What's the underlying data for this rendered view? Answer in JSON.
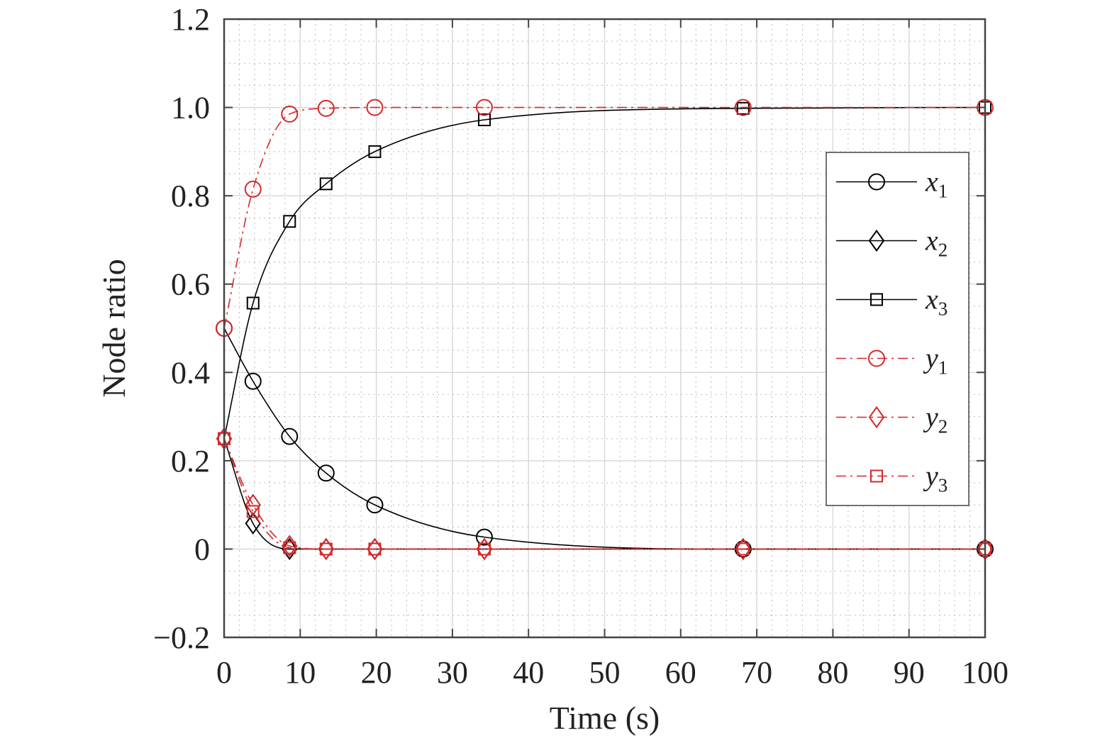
{
  "chart_data": {
    "type": "line",
    "xlabel": "Time (s)",
    "ylabel": "Node ratio",
    "xlim": [
      0,
      100
    ],
    "ylim": [
      -0.2,
      1.2
    ],
    "xticks": [
      0,
      10,
      20,
      30,
      40,
      50,
      60,
      70,
      80,
      90,
      100
    ],
    "yticks": [
      -0.2,
      0,
      0.2,
      0.4,
      0.6,
      0.8,
      1.0,
      1.2
    ],
    "ytick_labels": [
      "−0.2",
      "0",
      "0.2",
      "0.4",
      "0.6",
      "0.8",
      "1.0",
      "1.2"
    ],
    "grid": true,
    "minor_grid": true,
    "legend_position": "right",
    "series": [
      {
        "name": "x",
        "subscript": "1",
        "color": "#000000",
        "dash": "solid",
        "marker": "circle",
        "x": [
          0,
          3.8,
          8.6,
          13.4,
          19.8,
          34.2,
          68.2,
          100
        ],
        "y": [
          0.5,
          0.38,
          0.255,
          0.172,
          0.1,
          0.027,
          0.0,
          0.0
        ]
      },
      {
        "name": "x",
        "subscript": "2",
        "color": "#000000",
        "dash": "solid",
        "marker": "diamond",
        "x": [
          0,
          3.8,
          8.6,
          13.4,
          19.8,
          34.2,
          68.2,
          100
        ],
        "y": [
          0.25,
          0.058,
          0.0,
          0.0,
          0.0,
          0.0,
          0.0,
          0.0
        ]
      },
      {
        "name": "x",
        "subscript": "3",
        "color": "#000000",
        "dash": "solid",
        "marker": "square",
        "x": [
          0,
          3.8,
          8.6,
          13.4,
          19.8,
          34.2,
          68.2,
          100
        ],
        "y": [
          0.25,
          0.557,
          0.742,
          0.827,
          0.9,
          0.972,
          0.998,
          1.0
        ]
      },
      {
        "name": "y",
        "subscript": "1",
        "color": "#d62728",
        "dash": "dashdot",
        "marker": "circle",
        "x": [
          0,
          3.8,
          8.6,
          13.4,
          19.8,
          34.2,
          68.2,
          100
        ],
        "y": [
          0.5,
          0.815,
          0.985,
          0.998,
          1.0,
          1.0,
          1.0,
          1.0
        ]
      },
      {
        "name": "y",
        "subscript": "2",
        "color": "#d62728",
        "dash": "dashdot",
        "marker": "diamond",
        "x": [
          0,
          3.8,
          8.6,
          13.4,
          19.8,
          34.2,
          68.2,
          100
        ],
        "y": [
          0.25,
          0.1,
          0.007,
          0.0,
          0.0,
          0.0,
          0.0,
          0.0
        ]
      },
      {
        "name": "y",
        "subscript": "3",
        "color": "#d62728",
        "dash": "dashdot",
        "marker": "square",
        "x": [
          0,
          3.8,
          8.6,
          13.4,
          19.8,
          34.2,
          68.2,
          100
        ],
        "y": [
          0.25,
          0.085,
          0.003,
          0.0,
          0.0,
          0.0,
          0.0,
          0.0
        ]
      }
    ]
  }
}
